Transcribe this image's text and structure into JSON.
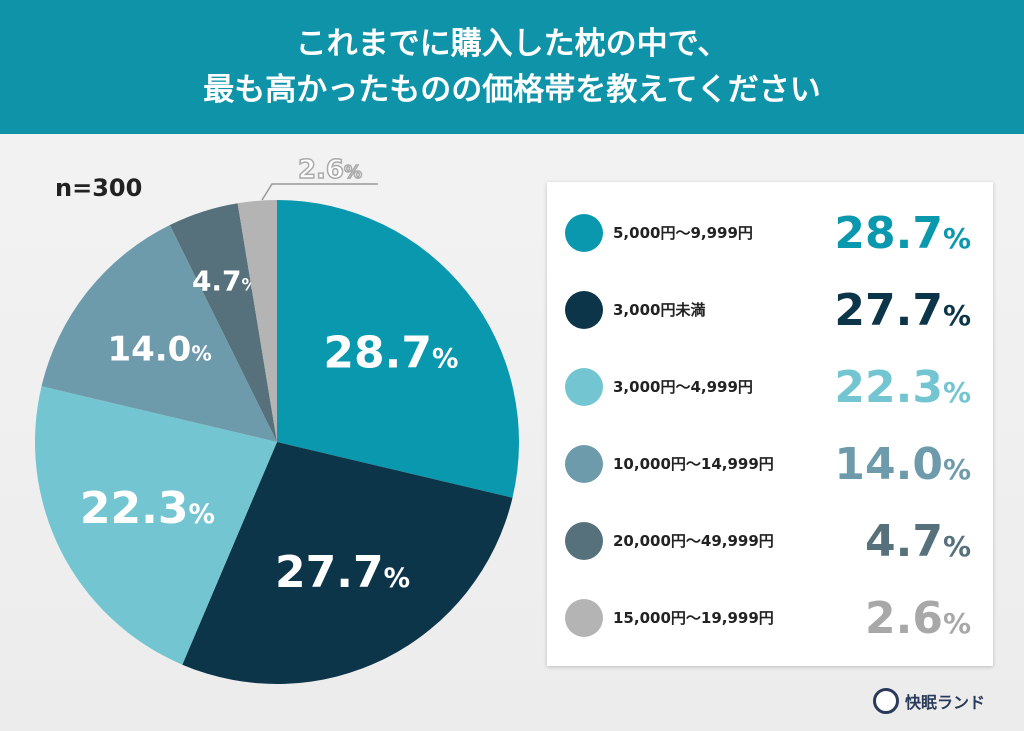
{
  "header": {
    "line1": "これまでに購入した枕の中で、",
    "line2": "最も高かったものの価格帯を教えてください"
  },
  "sample": "n=300",
  "chart_data": {
    "type": "pie",
    "title": "これまでに購入した枕の中で、最も高かったものの価格帯を教えてください",
    "categories": [
      "5,000円〜9,999円",
      "3,000円未満",
      "3,000円〜4,999円",
      "10,000円〜14,999円",
      "20,000円〜49,999円",
      "15,000円〜19,999円"
    ],
    "values": [
      28.7,
      27.7,
      22.3,
      14.0,
      4.7,
      2.6
    ],
    "value_labels": [
      "28.7",
      "27.7",
      "22.3",
      "14.0",
      "4.7",
      "2.6"
    ],
    "unit": "%",
    "colors": [
      "#0a98ae",
      "#0d3549",
      "#73c6d1",
      "#6e9bac",
      "#56717c",
      "#b4b4b4"
    ],
    "value_colors": [
      "#0a98ae",
      "#0d3549",
      "#73c6d1",
      "#6e9bac",
      "#56717c",
      "#a8a8a8"
    ],
    "start": "12 o'clock, clockwise",
    "legend_placement": "right"
  },
  "logo": {
    "text": "快眠ランド"
  }
}
